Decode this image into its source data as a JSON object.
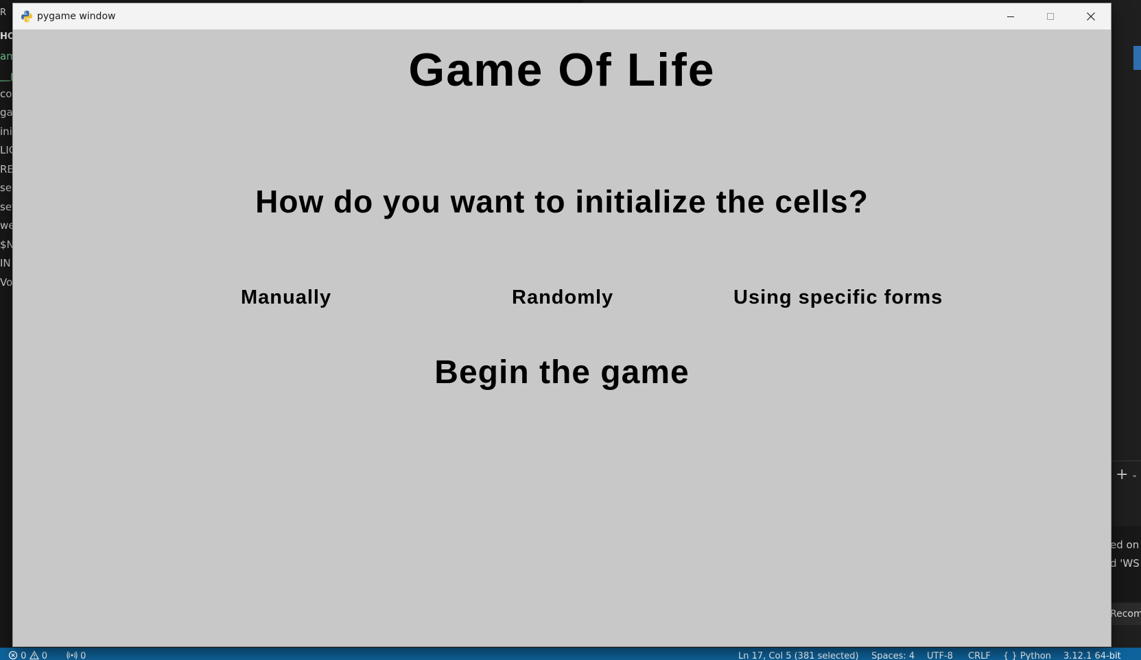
{
  "background_editor": {
    "sidebar_fragments": [
      "R",
      "HO",
      "am",
      "__p",
      "co",
      "ga",
      "init",
      "LIC",
      "RE",
      "sel",
      "set",
      "we",
      "$N",
      "IN",
      "Vor"
    ],
    "panel_fragments": [
      "ed on",
      "d 'WS",
      "Recomm"
    ],
    "status_bar": {
      "problems": "0",
      "warnings": "0",
      "ports": "0",
      "position": "Ln 17, Col 5 (381 selected)",
      "spaces": "Spaces: 4",
      "encoding": "UTF-8",
      "eol": "CRLF",
      "language": "Python",
      "interpreter": "3.12.1 64-bit"
    },
    "status_bar_color": "#0e639c"
  },
  "window": {
    "title": "pygame window",
    "icon": "pygame-snake-icon",
    "controls": {
      "minimize": "minimize-icon",
      "maximize": "maximize-icon",
      "close": "close-icon"
    }
  },
  "game": {
    "background_color": "#c8c8c8",
    "text_color": "#000000",
    "title": "Game Of Life",
    "question": "How do you want to initialize the cells?",
    "options": {
      "manual": "Manually",
      "random": "Randomly",
      "forms": "Using specific forms"
    },
    "begin": "Begin the game"
  }
}
